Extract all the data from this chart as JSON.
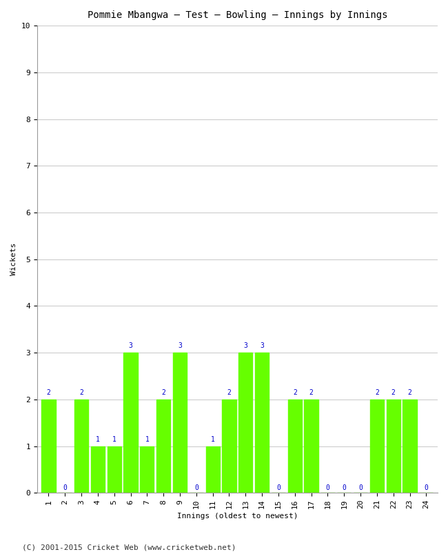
{
  "title": "Pommie Mbangwa – Test – Bowling – Innings by Innings",
  "xlabel": "Innings (oldest to newest)",
  "ylabel": "Wickets",
  "innings": [
    1,
    2,
    3,
    4,
    5,
    6,
    7,
    8,
    9,
    10,
    11,
    12,
    13,
    14,
    15,
    16,
    17,
    18,
    19,
    20,
    21,
    22,
    23,
    24
  ],
  "values": [
    2,
    0,
    2,
    1,
    1,
    3,
    1,
    2,
    3,
    0,
    1,
    2,
    3,
    3,
    0,
    2,
    2,
    0,
    0,
    0,
    2,
    2,
    2,
    0
  ],
  "bar_color": "#66ff00",
  "ylim": [
    0,
    10
  ],
  "yticks": [
    0,
    1,
    2,
    3,
    4,
    5,
    6,
    7,
    8,
    9,
    10
  ],
  "label_color": "#0000cc",
  "label_fontsize": 7,
  "title_fontsize": 10,
  "axis_label_fontsize": 8,
  "tick_fontsize": 8,
  "background_color": "#ffffff",
  "grid_color": "#cccccc",
  "footer_text": "(C) 2001-2015 Cricket Web (www.cricketweb.net)",
  "footer_fontsize": 8
}
